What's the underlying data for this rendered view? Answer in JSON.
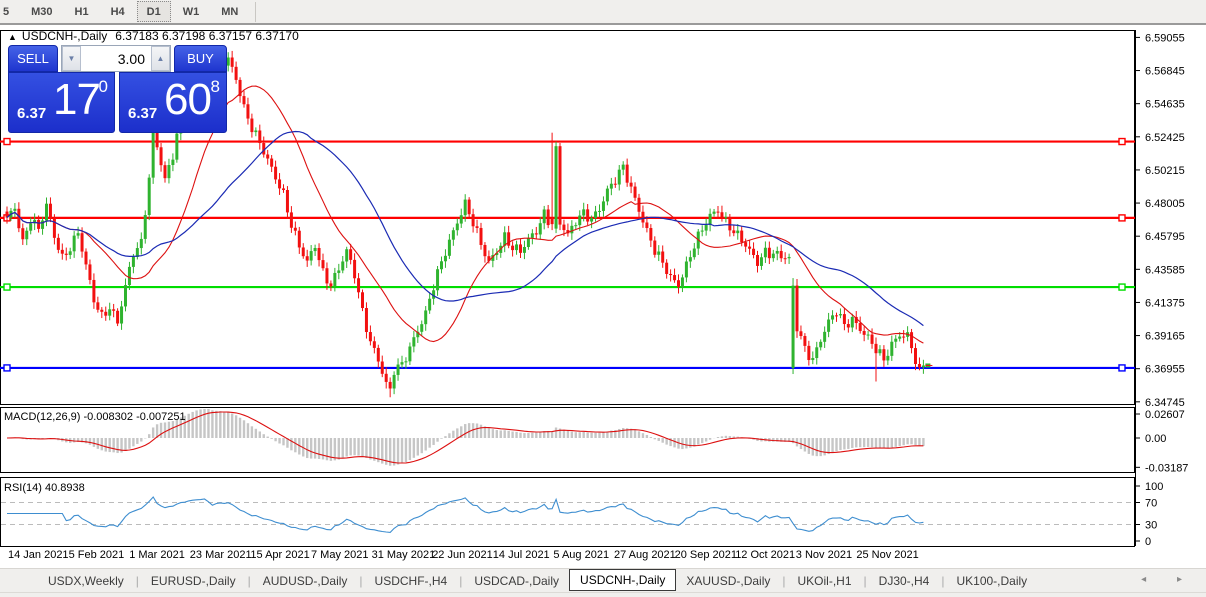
{
  "toolbar": {
    "items": [
      "5",
      "M30",
      "H1",
      "H4",
      "D1",
      "W1",
      "MN"
    ],
    "active": "D1"
  },
  "chart": {
    "title_icon": "▲",
    "title_symbol": "USDCNH-,Daily",
    "title_ohlc": "6.37183 6.37198 6.37157 6.37170"
  },
  "trade": {
    "sell_label": "SELL",
    "buy_label": "BUY",
    "volume": "3.00",
    "spin_down_icon": "▼",
    "spin_up_icon": "▲",
    "sell_price_small": "6.37",
    "sell_price_big": "17",
    "sell_price_sup": "0",
    "buy_price_small": "6.37",
    "buy_price_big": "60",
    "buy_price_sup": "8"
  },
  "macd_panel": {
    "label": "MACD(12,26,9) -0.008302 -0.007251"
  },
  "rsi_panel": {
    "label": "RSI(14) 40.8938"
  },
  "tabs": {
    "items": [
      "USDX,Weekly",
      "EURUSD-,Daily",
      "AUDUSD-,Daily",
      "USDCHF-,H4",
      "USDCAD-,Daily",
      "USDCNH-,Daily",
      "XAUUSD-,Daily",
      "UKOil-,H1",
      "DJ30-,H4",
      "UK100-,Daily"
    ],
    "active": "USDCNH-,Daily",
    "left_arrow_icon": "◂",
    "right_arrow_icon": "▸"
  },
  "chart_data": {
    "type": "candlestick",
    "symbol": "USDCNH-,Daily",
    "ohlc_display": {
      "open": "6.37183",
      "high": "6.37198",
      "low": "6.37157",
      "close": "6.37170"
    },
    "n_candles": 233,
    "ylim": [
      6.346,
      6.5955
    ],
    "y_ticks": [
      "6.59055",
      "6.56845",
      "6.54635",
      "6.52425",
      "6.50215",
      "6.48005",
      "6.45795",
      "6.43585",
      "6.41375",
      "6.39165",
      "6.36955",
      "6.34745"
    ],
    "x_labels": [
      "14 Jan 2021",
      "5 Feb 2021",
      "1 Mar 2021",
      "23 Mar 2021",
      "15 Apr 2021",
      "7 May 2021",
      "31 May 2021",
      "22 Jun 2021",
      "14 Jul 2021",
      "5 Aug 2021",
      "27 Aug 2021",
      "20 Sep 2021",
      "12 Oct 2021",
      "3 Nov 2021",
      "25 Nov 2021"
    ],
    "price_anchors": [
      [
        0,
        6.468
      ],
      [
        2,
        6.477
      ],
      [
        4,
        6.455
      ],
      [
        6,
        6.471
      ],
      [
        8,
        6.462
      ],
      [
        10,
        6.477
      ],
      [
        12,
        6.457
      ],
      [
        14,
        6.444
      ],
      [
        16,
        6.452
      ],
      [
        18,
        6.461
      ],
      [
        20,
        6.437
      ],
      [
        22,
        6.414
      ],
      [
        24,
        6.404
      ],
      [
        26,
        6.412
      ],
      [
        28,
        6.402
      ],
      [
        30,
        6.424
      ],
      [
        32,
        6.445
      ],
      [
        34,
        6.452
      ],
      [
        36,
        6.498
      ],
      [
        37,
        6.543
      ],
      [
        38,
        6.52
      ],
      [
        40,
        6.496
      ],
      [
        42,
        6.511
      ],
      [
        44,
        6.536
      ],
      [
        46,
        6.556
      ],
      [
        48,
        6.572
      ],
      [
        50,
        6.577
      ],
      [
        52,
        6.559
      ],
      [
        54,
        6.571
      ],
      [
        56,
        6.575
      ],
      [
        58,
        6.564
      ],
      [
        60,
        6.545
      ],
      [
        62,
        6.531
      ],
      [
        64,
        6.519
      ],
      [
        66,
        6.507
      ],
      [
        68,
        6.497
      ],
      [
        70,
        6.487
      ],
      [
        72,
        6.467
      ],
      [
        74,
        6.451
      ],
      [
        76,
        6.439
      ],
      [
        78,
        6.451
      ],
      [
        80,
        6.434
      ],
      [
        82,
        6.427
      ],
      [
        84,
        6.437
      ],
      [
        86,
        6.447
      ],
      [
        88,
        6.431
      ],
      [
        90,
        6.407
      ],
      [
        92,
        6.389
      ],
      [
        94,
        6.377
      ],
      [
        96,
        6.359
      ],
      [
        97,
        6.354
      ],
      [
        98,
        6.367
      ],
      [
        100,
        6.371
      ],
      [
        102,
        6.384
      ],
      [
        104,
        6.397
      ],
      [
        106,
        6.407
      ],
      [
        108,
        6.424
      ],
      [
        110,
        6.439
      ],
      [
        112,
        6.454
      ],
      [
        114,
        6.469
      ],
      [
        116,
        6.481
      ],
      [
        118,
        6.467
      ],
      [
        120,
        6.451
      ],
      [
        122,
        6.439
      ],
      [
        124,
        6.449
      ],
      [
        126,
        6.459
      ],
      [
        128,
        6.451
      ],
      [
        130,
        6.447
      ],
      [
        132,
        6.454
      ],
      [
        134,
        6.461
      ],
      [
        136,
        6.474
      ],
      [
        138,
        6.466
      ],
      [
        139,
        6.518
      ],
      [
        140,
        6.467
      ],
      [
        142,
        6.457
      ],
      [
        144,
        6.467
      ],
      [
        146,
        6.474
      ],
      [
        148,
        6.471
      ],
      [
        150,
        6.477
      ],
      [
        152,
        6.487
      ],
      [
        154,
        6.494
      ],
      [
        156,
        6.504
      ],
      [
        158,
        6.491
      ],
      [
        160,
        6.477
      ],
      [
        162,
        6.461
      ],
      [
        164,
        6.447
      ],
      [
        166,
        6.439
      ],
      [
        168,
        6.431
      ],
      [
        170,
        6.427
      ],
      [
        172,
        6.439
      ],
      [
        174,
        6.451
      ],
      [
        176,
        6.461
      ],
      [
        178,
        6.471
      ],
      [
        180,
        6.477
      ],
      [
        182,
        6.469
      ],
      [
        184,
        6.461
      ],
      [
        186,
        6.454
      ],
      [
        188,
        6.447
      ],
      [
        190,
        6.441
      ],
      [
        192,
        6.449
      ],
      [
        194,
        6.447
      ],
      [
        196,
        6.444
      ],
      [
        198,
        6.441
      ],
      [
        199,
        6.425
      ],
      [
        200,
        6.397
      ],
      [
        202,
        6.384
      ],
      [
        204,
        6.377
      ],
      [
        206,
        6.389
      ],
      [
        208,
        6.399
      ],
      [
        210,
        6.407
      ],
      [
        212,
        6.399
      ],
      [
        214,
        6.404
      ],
      [
        216,
        6.397
      ],
      [
        218,
        6.389
      ],
      [
        220,
        6.381
      ],
      [
        222,
        6.375
      ],
      [
        224,
        6.387
      ],
      [
        226,
        6.394
      ],
      [
        228,
        6.391
      ],
      [
        229,
        6.384
      ],
      [
        230,
        6.373
      ],
      [
        231,
        6.3705
      ],
      [
        232,
        6.3717
      ]
    ],
    "special_candles": [
      {
        "i": 97,
        "l": 6.3505
      },
      {
        "i": 138,
        "o": 6.47,
        "h": 6.527,
        "l": 6.462,
        "c": 6.466
      },
      {
        "i": 139,
        "o": 6.463,
        "h": 6.521,
        "l": 6.46,
        "c": 6.518
      },
      {
        "i": 199,
        "o": 6.37,
        "h": 6.43,
        "l": 6.366,
        "c": 6.425
      },
      {
        "i": 220,
        "l": 6.361
      }
    ],
    "hlines": [
      {
        "value": 6.52109,
        "label": "6.52109",
        "color": "#ff0000"
      },
      {
        "value": 6.47015,
        "label": "6.47015",
        "color": "#ff0000"
      },
      {
        "value": 6.42401,
        "label": "6.42401",
        "color": "#00dd00"
      },
      {
        "value": 6.37007,
        "label": "6.37007",
        "color": "#0000ff"
      }
    ],
    "last_price": 6.3717,
    "ma_fast": {
      "period": 20,
      "color": "#dd1111"
    },
    "ma_slow": {
      "period": 40,
      "color": "#1b2bb4"
    },
    "colors": {
      "up": "#2fb32f",
      "down": "#f21010",
      "hist": "#c6c6c6",
      "rsi_line": "#3e8ed0"
    },
    "macd": {
      "params": "12,26,9",
      "value": "-0.008302",
      "signal": "-0.007251",
      "axis_ticks": [
        "0.02607",
        "0.00",
        "-0.03187"
      ]
    },
    "rsi": {
      "period": "14",
      "value": "40.8938",
      "axis_ticks": [
        "100",
        "70",
        "30",
        "0"
      ],
      "guides": [
        70,
        30
      ]
    }
  }
}
